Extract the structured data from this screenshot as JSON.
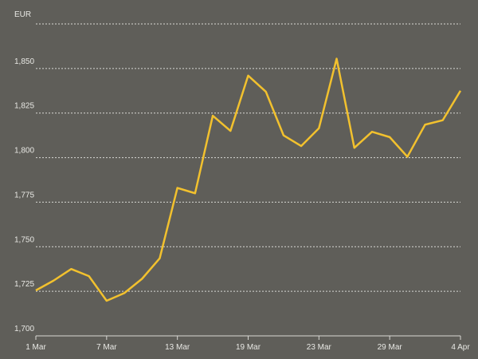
{
  "chart_data": {
    "type": "line",
    "y_label": "EUR",
    "categories": [
      "1 Mar",
      null,
      null,
      null,
      "7 Mar",
      null,
      null,
      null,
      "13 Mar",
      null,
      null,
      null,
      "19 Mar",
      null,
      null,
      null,
      "23 Mar",
      null,
      null,
      null,
      "29 Mar",
      null,
      null,
      null,
      "4 Apr"
    ],
    "series": [
      {
        "color": "#f2c12e",
        "values": [
          1725.5,
          1731,
          1737.5,
          1733.5,
          1719.7,
          1724,
          1732,
          1743.5,
          1783,
          1780,
          1823.5,
          1815,
          1846,
          1837,
          1812.5,
          1806.5,
          1816.5,
          1855.5,
          1805.5,
          1814.5,
          1811.5,
          1800.5,
          1818.5,
          1821,
          1837.5
        ]
      }
    ],
    "ylim": [
      1700,
      1875
    ],
    "yticks": [
      {
        "value": 1700,
        "label": "1,700"
      },
      {
        "value": 1725,
        "label": "1,725"
      },
      {
        "value": 1750,
        "label": "1,750"
      },
      {
        "value": 1775,
        "label": "1,775"
      },
      {
        "value": 1800,
        "label": "1,800"
      },
      {
        "value": 1825,
        "label": "1,825"
      },
      {
        "value": 1850,
        "label": "1,850"
      }
    ],
    "grid": true,
    "background": "#5f5e59"
  }
}
